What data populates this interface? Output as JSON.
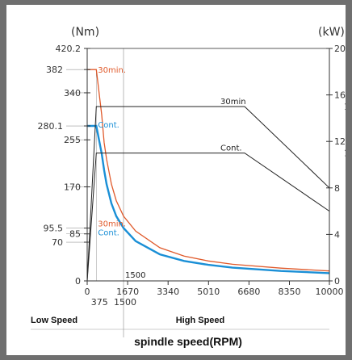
{
  "chart_data": {
    "type": "line",
    "xlabel": "spindle speed(RPM)",
    "ylabel_left": "(Nm)",
    "ylabel_right": "(kW)",
    "xlim": [
      0,
      10000
    ],
    "ylim_left": [
      0,
      420.2
    ],
    "ylim_right": [
      0,
      20
    ],
    "x_ticks": [
      "0",
      "1670",
      "3340",
      "5010",
      "6680",
      "8350",
      "10000"
    ],
    "x_ticks_extra": [
      "375",
      "1500"
    ],
    "y_left_ticks": [
      420.2,
      382,
      340,
      280.1,
      255,
      170,
      95.5,
      85,
      70,
      0
    ],
    "y_left_tick_labels": [
      "420.2",
      "382",
      "340",
      "280.1",
      "255",
      "170",
      "95.5",
      "85",
      "70",
      "0"
    ],
    "y_right_ticks": [
      20,
      16,
      12,
      8,
      4,
      0
    ],
    "y_right_tick_labels": [
      "20",
      "16",
      "12",
      "8",
      "4",
      "0"
    ],
    "low_speed_label": "Low Speed",
    "high_speed_label": "High Speed",
    "ref_line_label": "1500",
    "right_edge_labels": [
      "1",
      "1"
    ],
    "colors": {
      "torque_30min": "#e05a2b",
      "torque_cont": "#1a8fd6",
      "power": "#222222",
      "grid": "#9a9a9a"
    },
    "series": [
      {
        "name": "30min.",
        "kind": "torque",
        "axis": "left",
        "x": [
          0,
          375,
          375,
          600,
          700,
          800,
          1000,
          1200,
          1500,
          2000,
          3000,
          4000,
          5000,
          6000,
          8000,
          10000
        ],
        "y": [
          382,
          382,
          382,
          300,
          250,
          220,
          175,
          145,
          117,
          90,
          60,
          45,
          36,
          30,
          23,
          18
        ]
      },
      {
        "name": "Cont.",
        "kind": "torque",
        "axis": "left",
        "x": [
          0,
          375,
          375,
          600,
          700,
          800,
          1000,
          1200,
          1500,
          2000,
          3000,
          4000,
          5000,
          6000,
          8000,
          10000
        ],
        "y": [
          280.1,
          280.1,
          280.1,
          230,
          200,
          175,
          140,
          117,
          95.5,
          72,
          48,
          36,
          29,
          24,
          18,
          14
        ]
      },
      {
        "name": "30min",
        "kind": "power",
        "axis": "right",
        "x": [
          0,
          375,
          375,
          6500,
          10000
        ],
        "y": [
          0,
          15,
          15,
          15,
          8
        ]
      },
      {
        "name": "Cont.",
        "kind": "power",
        "axis": "right",
        "x": [
          0,
          375,
          375,
          6500,
          10000
        ],
        "y": [
          0,
          11,
          11,
          11,
          6
        ]
      }
    ],
    "annotations_30min_low": "30min.",
    "annotations_cont_low": "Cont.",
    "grid": false
  }
}
